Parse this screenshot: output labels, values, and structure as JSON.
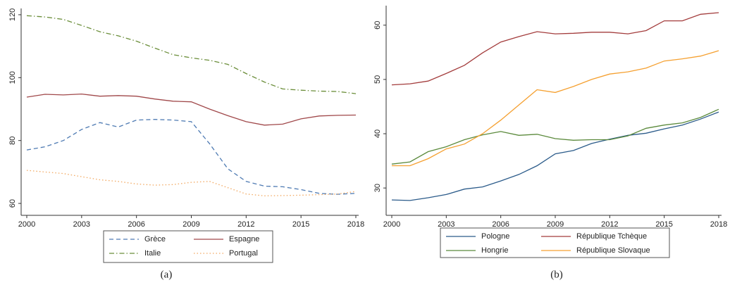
{
  "chart_data": [
    {
      "type": "line",
      "caption": "(a)",
      "x": [
        2000,
        2001,
        2002,
        2003,
        2004,
        2005,
        2006,
        2007,
        2008,
        2009,
        2010,
        2011,
        2012,
        2013,
        2014,
        2015,
        2016,
        2017,
        2018
      ],
      "xlim": [
        2000,
        2018
      ],
      "xticks": [
        2000,
        2003,
        2006,
        2009,
        2012,
        2015,
        2018
      ],
      "ylim": [
        58,
        122
      ],
      "yticks": [
        60,
        80,
        100,
        120
      ],
      "series": [
        {
          "name": "Grèce",
          "color": "#4f7bb3",
          "dash": "dashed",
          "values": [
            77,
            78,
            80,
            83.5,
            85.7,
            84.3,
            86.5,
            86.7,
            86.5,
            86,
            79,
            71,
            67,
            65.5,
            65.3,
            64.4,
            63.2,
            62.9,
            63.2
          ]
        },
        {
          "name": "Espagne",
          "color": "#a0484a",
          "dash": "solid",
          "values": [
            93.8,
            94.7,
            94.5,
            94.8,
            94.1,
            94.3,
            94.1,
            93.2,
            92.5,
            92.3,
            90,
            87.9,
            86,
            84.9,
            85.2,
            86.9,
            87.8,
            88,
            88.1
          ]
        },
        {
          "name": "Italie",
          "color": "#6b8e3a",
          "dash": "dashdot",
          "values": [
            119.7,
            119.3,
            118.5,
            116.6,
            114.6,
            113.3,
            111.6,
            109.4,
            107.3,
            106.3,
            105.5,
            104.2,
            101.3,
            98.6,
            96.4,
            96,
            95.7,
            95.6,
            94.9
          ]
        },
        {
          "name": "Portugal",
          "color": "#f2a860",
          "dash": "dotted",
          "values": [
            70.5,
            70,
            69.5,
            68.5,
            67.5,
            67,
            66.2,
            65.8,
            66,
            66.7,
            67,
            65,
            63,
            62.4,
            62.5,
            62.6,
            62.8,
            63,
            63.8
          ]
        }
      ]
    },
    {
      "type": "line",
      "caption": "(b)",
      "x": [
        2000,
        2001,
        2002,
        2003,
        2004,
        2005,
        2006,
        2007,
        2008,
        2009,
        2010,
        2011,
        2012,
        2013,
        2014,
        2015,
        2016,
        2017,
        2018
      ],
      "xlim": [
        2000,
        2018
      ],
      "xticks": [
        2000,
        2003,
        2006,
        2009,
        2012,
        2015,
        2018
      ],
      "ylim": [
        26,
        63.6
      ],
      "yticks": [
        30,
        40,
        50,
        60
      ],
      "series": [
        {
          "name": "Pologne",
          "color": "#2b5b8a",
          "dash": "solid",
          "values": [
            27.8,
            27.7,
            28.2,
            28.8,
            29.8,
            30.2,
            31.3,
            32.5,
            34.1,
            36.3,
            36.9,
            38.2,
            39,
            39.7,
            40.1,
            40.9,
            41.6,
            42.7,
            44
          ]
        },
        {
          "name": "République Tchèque",
          "color": "#a33c3c",
          "dash": "solid",
          "values": [
            49,
            49.2,
            49.7,
            51.1,
            52.6,
            54.9,
            56.9,
            57.9,
            58.8,
            58.4,
            58.5,
            58.7,
            58.7,
            58.4,
            59,
            60.8,
            60.8,
            62,
            62.3
          ]
        },
        {
          "name": "Hongrie",
          "color": "#5b8a3c",
          "dash": "solid",
          "values": [
            34.4,
            34.8,
            36.7,
            37.6,
            38.9,
            39.8,
            40.4,
            39.7,
            39.9,
            39.1,
            38.8,
            38.9,
            38.9,
            39.6,
            41,
            41.6,
            42,
            43,
            44.5
          ]
        },
        {
          "name": "République Slovaque",
          "color": "#f5a030",
          "dash": "solid",
          "values": [
            34.1,
            34.1,
            35.4,
            37.2,
            38.1,
            40,
            42.5,
            45.3,
            48.1,
            47.6,
            48.7,
            50,
            51,
            51.4,
            52.1,
            53.4,
            53.8,
            54.3,
            55.3
          ]
        }
      ]
    }
  ]
}
